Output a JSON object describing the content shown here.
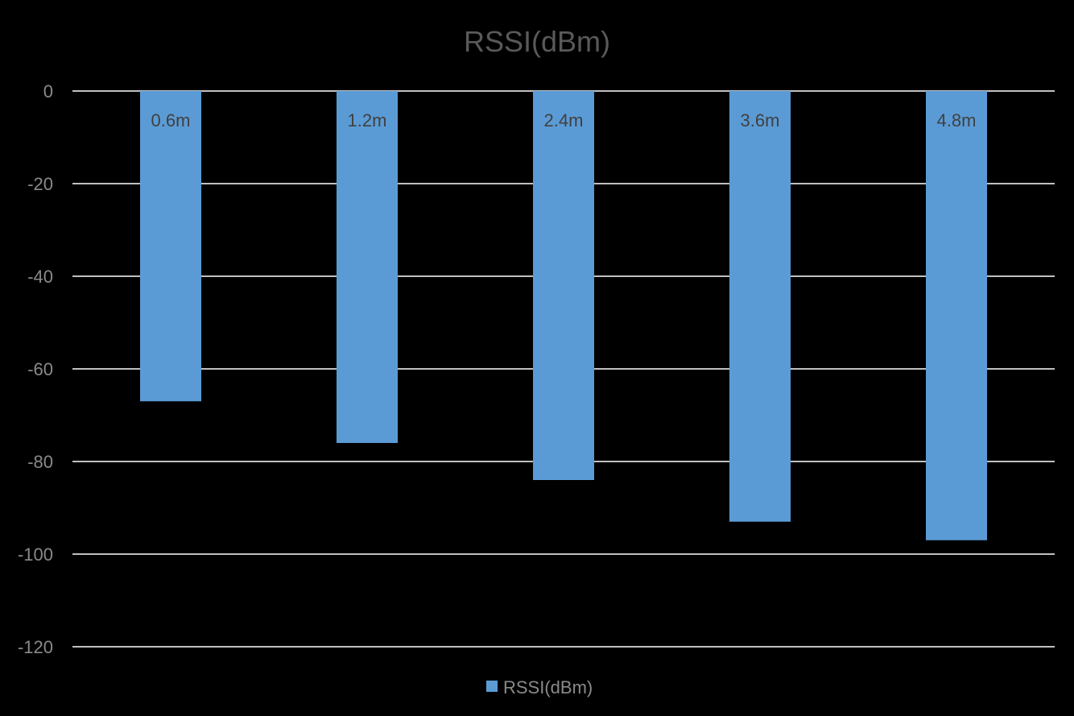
{
  "chart_data": {
    "type": "bar",
    "title": "RSSI(dBm)",
    "categories": [
      "0.6m",
      "1.2m",
      "2.4m",
      "3.6m",
      "4.8m"
    ],
    "series": [
      {
        "name": "RSSI(dBm)",
        "values": [
          -67,
          -76,
          -84,
          -93,
          -97
        ]
      }
    ],
    "xlabel": "",
    "ylabel": "",
    "ylim": [
      -120,
      0
    ],
    "yticks": [
      0,
      -20,
      -40,
      -60,
      -80,
      -100,
      -120
    ],
    "ytick_labels": [
      "0",
      "-20",
      "-40",
      "-60",
      "-80",
      "-100",
      "-120"
    ],
    "grid": true,
    "legend_position": "bottom",
    "colors": {
      "background": "#000000",
      "bar": "#5b9bd5",
      "gridline": "#ffffff",
      "tick_text": "#8a8a8a",
      "title_text": "#595959",
      "category_text": "#404040"
    }
  }
}
